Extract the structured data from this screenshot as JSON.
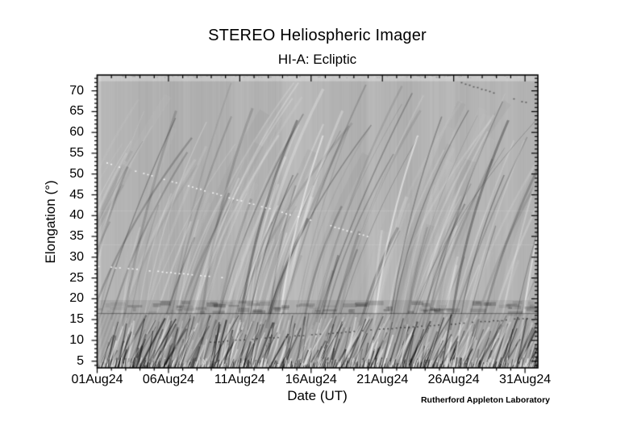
{
  "figure": {
    "background_color": "#ffffff",
    "text_color": "#000000",
    "credit": "Rutherford Appleton Laboratory"
  },
  "chart_data": {
    "type": "heatmap",
    "title": "STEREO Heliospheric Imager",
    "subtitle": "HI-A: Ecliptic",
    "xlabel": "Date (UT)",
    "ylabel": "Elongation (°)",
    "colormap": "grayscale",
    "image_base_gray": "#9a9a9a",
    "top_band_gray": "#b3b3b3",
    "x_tick_labels": [
      "01Aug24",
      "06Aug24",
      "11Aug24",
      "16Aug24",
      "21Aug24",
      "26Aug24",
      "31Aug24"
    ],
    "x_tick_positions_days": [
      0,
      5,
      10,
      15,
      20,
      25,
      30
    ],
    "x_minor_tick_step_days": 1,
    "x_range_days": [
      0,
      30.9
    ],
    "y_tick_values": [
      5,
      10,
      15,
      20,
      25,
      30,
      35,
      40,
      45,
      50,
      55,
      60,
      65,
      70
    ],
    "y_minor_tick_step_deg": 1,
    "y_range_deg": [
      3.4,
      73.8
    ],
    "legend": "none",
    "grid": "off",
    "description": "Time-elongation J-map: many diagonal transient streaks (dark and bright) rising from low to high elongation throughout August 2024; dense high-contrast fan streaks in the inner-camera band at the bottom.",
    "features": {
      "camera_boundary_elongation_deg": 16.4,
      "hi1_band": "dense high-contrast daily fan streaks below ~16 deg elongation",
      "top_light_band_deg": [
        72.3,
        73.8
      ],
      "notable_bright_streak_days": [
        12.85,
        19.5,
        29.9
      ],
      "notable_dark_streak_days": [
        10.2,
        25.0
      ],
      "planet_tracks": [
        {
          "kind": "bright-dotted",
          "from_day": 0.65,
          "from_deg": 52.7,
          "to_day": 18.9,
          "to_deg": 35.2
        },
        {
          "kind": "bright-dotted",
          "from_day": 0.05,
          "from_deg": 28.0,
          "to_day": 8.7,
          "to_deg": 25.3
        },
        {
          "kind": "dark-dotted",
          "from_day": 25.5,
          "from_deg": 72.1,
          "to_day": 30.3,
          "to_deg": 67.0
        },
        {
          "kind": "dark-dotted",
          "from_day": 7.6,
          "from_deg": 9.6,
          "to_day": 30.7,
          "to_deg": 15.6
        }
      ]
    }
  }
}
